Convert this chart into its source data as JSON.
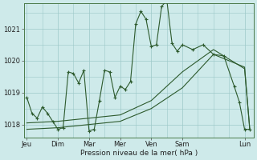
{
  "xlabel": "Pression niveau de la mer( hPa )",
  "bg_color": "#ceeaea",
  "grid_color": "#9dc8c8",
  "line_color": "#2d5a2d",
  "ylim": [
    1017.6,
    1021.8
  ],
  "yticks": [
    1018,
    1019,
    1020,
    1021
  ],
  "day_labels": [
    "Jeu",
    "Dim",
    "Mar",
    "Mer",
    "Ven",
    "Sam",
    "Lun"
  ],
  "day_positions": [
    0,
    24,
    48,
    72,
    96,
    120,
    168
  ],
  "xlim": [
    -2,
    175
  ],
  "series1_x": [
    0,
    4,
    8,
    12,
    16,
    20,
    24,
    28,
    32,
    36,
    40,
    44,
    48,
    52,
    56,
    60,
    64,
    68,
    72,
    76,
    80,
    84,
    88,
    92,
    96,
    100,
    104,
    108,
    112,
    116,
    120,
    128,
    136,
    144,
    152,
    160,
    164,
    168,
    172
  ],
  "series1_y": [
    1018.85,
    1018.35,
    1018.2,
    1018.55,
    1018.35,
    1018.1,
    1017.85,
    1017.9,
    1019.65,
    1019.6,
    1019.3,
    1019.7,
    1017.8,
    1017.85,
    1018.75,
    1019.7,
    1019.65,
    1018.85,
    1019.2,
    1019.1,
    1019.35,
    1021.15,
    1021.55,
    1021.3,
    1020.45,
    1020.5,
    1021.7,
    1021.9,
    1020.55,
    1020.3,
    1020.5,
    1020.35,
    1020.5,
    1020.2,
    1020.15,
    1019.2,
    1018.7,
    1017.85,
    1017.85
  ],
  "series2_x": [
    0,
    24,
    48,
    72,
    96,
    120,
    144,
    168,
    172
  ],
  "series2_y": [
    1018.05,
    1018.1,
    1018.2,
    1018.3,
    1018.75,
    1019.65,
    1020.35,
    1019.75,
    1017.85
  ],
  "series3_x": [
    0,
    24,
    48,
    72,
    96,
    120,
    144,
    168,
    172
  ],
  "series3_y": [
    1017.85,
    1017.9,
    1018.0,
    1018.1,
    1018.5,
    1019.15,
    1020.2,
    1019.8,
    1017.85
  ]
}
